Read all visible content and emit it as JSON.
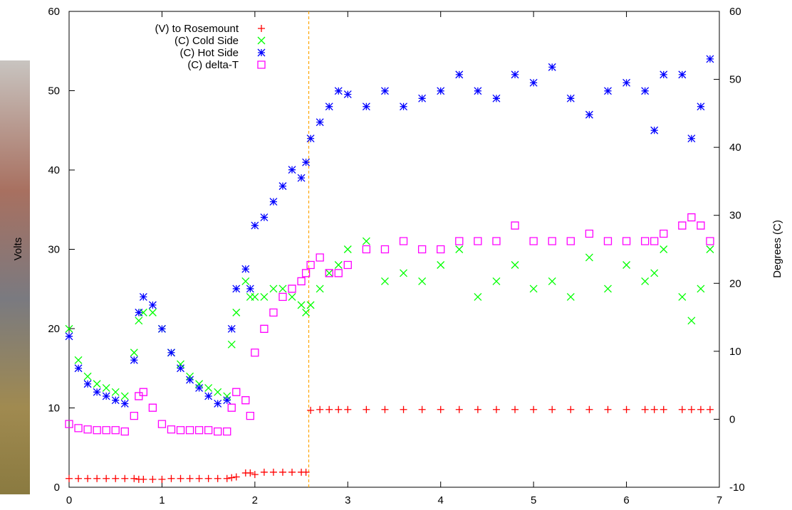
{
  "chart_data": {
    "type": "scatter",
    "ylabel": "Volts",
    "y2label": "Degrees (C)",
    "xlim": [
      0,
      7
    ],
    "xticks": [
      0,
      1,
      2,
      3,
      4,
      5,
      6,
      7
    ],
    "ylim": [
      0,
      60
    ],
    "yticks": [
      0,
      10,
      20,
      30,
      40,
      50,
      60
    ],
    "y2lim": [
      -10,
      60
    ],
    "y2ticks": [
      -10,
      0,
      10,
      20,
      30,
      40,
      50,
      60
    ],
    "vline": {
      "x": 2.58,
      "color": "#ffa500"
    },
    "legend": "top-left",
    "x": [
      0,
      0.1,
      0.2,
      0.3,
      0.4,
      0.5,
      0.6,
      0.7,
      0.75,
      0.8,
      0.9,
      1.0,
      1.1,
      1.2,
      1.3,
      1.4,
      1.5,
      1.6,
      1.7,
      1.75,
      1.8,
      1.9,
      1.95,
      2.0,
      2.1,
      2.2,
      2.3,
      2.4,
      2.5,
      2.55,
      2.6,
      2.7,
      2.8,
      2.9,
      3.0,
      3.2,
      3.4,
      3.6,
      3.8,
      4.0,
      4.2,
      4.4,
      4.6,
      4.8,
      5.0,
      5.2,
      5.4,
      5.6,
      5.8,
      6.0,
      6.2,
      6.3,
      6.4,
      6.6,
      6.7,
      6.8,
      6.9
    ],
    "series": [
      {
        "name": "(V) to Rosemount",
        "color": "#ff0000",
        "marker": "plus",
        "values": [
          1.1,
          1.1,
          1.1,
          1.1,
          1.1,
          1.1,
          1.1,
          1.1,
          1.0,
          1.0,
          1.0,
          1.0,
          1.1,
          1.1,
          1.1,
          1.1,
          1.1,
          1.1,
          1.1,
          1.2,
          1.3,
          1.8,
          1.8,
          1.6,
          1.9,
          1.9,
          1.9,
          1.9,
          1.9,
          1.9,
          9.7,
          9.8,
          9.8,
          9.8,
          9.8,
          9.8,
          9.8,
          9.8,
          9.8,
          9.8,
          9.8,
          9.8,
          9.8,
          9.8,
          9.8,
          9.8,
          9.8,
          9.8,
          9.8,
          9.8,
          9.8,
          9.8,
          9.8,
          9.8,
          9.8,
          9.8,
          9.8
        ]
      },
      {
        "name": "(C) Cold Side",
        "color": "#00ff00",
        "marker": "cross",
        "axis": "y2",
        "values": [
          13.3,
          8.7,
          6.3,
          5.2,
          4.6,
          4,
          3.4,
          9.8,
          14.5,
          15.7,
          15.7,
          13.3,
          9.8,
          8.1,
          6.3,
          5.2,
          4.6,
          4,
          3.4,
          11,
          15.7,
          20.3,
          18,
          18,
          18,
          19.2,
          19.2,
          18,
          16.8,
          15.7,
          16.8,
          19.2,
          21.5,
          22.7,
          25,
          26.2,
          20.3,
          21.5,
          20.3,
          22.7,
          25,
          18,
          20.3,
          22.7,
          19.2,
          20.3,
          18,
          23.8,
          19.2,
          22.7,
          20.3,
          21.5,
          25,
          18,
          14.5,
          19.2,
          25
        ]
      },
      {
        "name": "(C) Hot Side",
        "color": "#0000ff",
        "marker": "star",
        "axis": "y2",
        "values": [
          12.2,
          7.5,
          5.2,
          4,
          3.4,
          2.8,
          2.3,
          8.7,
          15.7,
          18,
          16.8,
          13.3,
          9.8,
          7.5,
          5.8,
          4.6,
          3.4,
          2.3,
          2.8,
          13.3,
          19.2,
          22.1,
          19.2,
          28.5,
          29.7,
          32,
          34.3,
          36.7,
          35.5,
          37.8,
          41.3,
          43.7,
          46,
          48.3,
          47.8,
          46,
          48.3,
          46,
          47.2,
          48.3,
          50.7,
          48.3,
          47.2,
          50.7,
          49.5,
          51.8,
          47.2,
          44.8,
          48.3,
          49.5,
          48.3,
          42.5,
          50.7,
          50.7,
          41.3,
          46,
          53
        ]
      },
      {
        "name": "(C) delta-T",
        "color": "#ff00ff",
        "marker": "square",
        "axis": "y2",
        "values": [
          -0.7,
          -1.3,
          -1.5,
          -1.6,
          -1.6,
          -1.6,
          -1.8,
          0.5,
          3.4,
          4,
          1.7,
          -0.7,
          -1.5,
          -1.6,
          -1.6,
          -1.6,
          -1.6,
          -1.8,
          -1.8,
          1.7,
          4,
          2.8,
          0.5,
          9.8,
          13.3,
          15.7,
          18,
          19.2,
          20.3,
          21.5,
          22.7,
          23.8,
          21.5,
          21.5,
          22.7,
          25,
          25,
          26.2,
          25,
          25,
          26.2,
          26.2,
          26.2,
          28.5,
          26.2,
          26.2,
          26.2,
          27.3,
          26.2,
          26.2,
          26.2,
          26.2,
          27.3,
          28.5,
          29.7,
          28.5,
          26.2
        ]
      }
    ]
  }
}
